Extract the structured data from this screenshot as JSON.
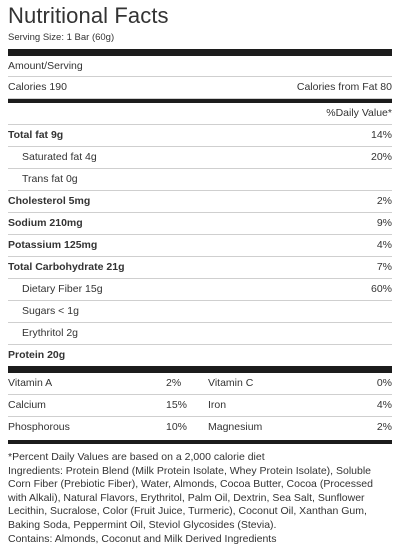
{
  "label": {
    "title": "Nutritional Facts",
    "serving_size": "Serving Size: 1 Bar (60g)",
    "amount_per_serving": "Amount/Serving",
    "calories": "Calories 190",
    "calories_from_fat": "Calories from Fat 80",
    "daily_value_header": "%Daily Value*"
  },
  "nutrients": [
    {
      "name": "Total fat 9g",
      "dv": "14%",
      "bold": true,
      "indent": false
    },
    {
      "name": "Saturated fat 4g",
      "dv": "20%",
      "bold": false,
      "indent": true
    },
    {
      "name": "Trans fat 0g",
      "dv": "",
      "bold": false,
      "indent": true
    },
    {
      "name": "Cholesterol 5mg",
      "dv": "2%",
      "bold": true,
      "indent": false
    },
    {
      "name": "Sodium 210mg",
      "dv": "9%",
      "bold": true,
      "indent": false
    },
    {
      "name": "Potassium 125mg",
      "dv": "4%",
      "bold": true,
      "indent": false
    },
    {
      "name": "Total Carbohydrate 21g",
      "dv": "7%",
      "bold": true,
      "indent": false
    },
    {
      "name": "Dietary Fiber 15g",
      "dv": "60%",
      "bold": false,
      "indent": true
    },
    {
      "name": "Sugars < 1g",
      "dv": "",
      "bold": false,
      "indent": true
    },
    {
      "name": "Erythritol 2g",
      "dv": "",
      "bold": false,
      "indent": true
    },
    {
      "name": "Protein 20g",
      "dv": "",
      "bold": true,
      "indent": false
    }
  ],
  "vitamins": [
    {
      "name1": "Vitamin A",
      "val1": "2%",
      "name2": "Vitamin C",
      "val2": "0%"
    },
    {
      "name1": "Calcium",
      "val1": "15%",
      "name2": "Iron",
      "val2": "4%"
    },
    {
      "name1": "Phosphorous",
      "val1": "10%",
      "name2": "Magnesium",
      "val2": "2%"
    }
  ],
  "footer": {
    "daily_values_note": "*Percent Daily Values are based on a 2,000 calorie diet",
    "ingredients": "Ingredients: Protein Blend (Milk Protein Isolate, Whey Protein Isolate), Soluble Corn Fiber (Prebiotic Fiber), Water, Almonds, Cocoa Butter, Cocoa (Processed with Alkali), Natural Flavors, Erythritol, Palm Oil, Dextrin, Sea Salt, Sunflower Lecithin, Sucralose, Color (Fruit Juice, Turmeric), Coconut Oil, Xanthan Gum, Baking Soda, Peppermint Oil, Steviol Glycosides (Stevia).",
    "contains": "Contains: Almonds, Coconut and Milk Derived Ingredients"
  }
}
